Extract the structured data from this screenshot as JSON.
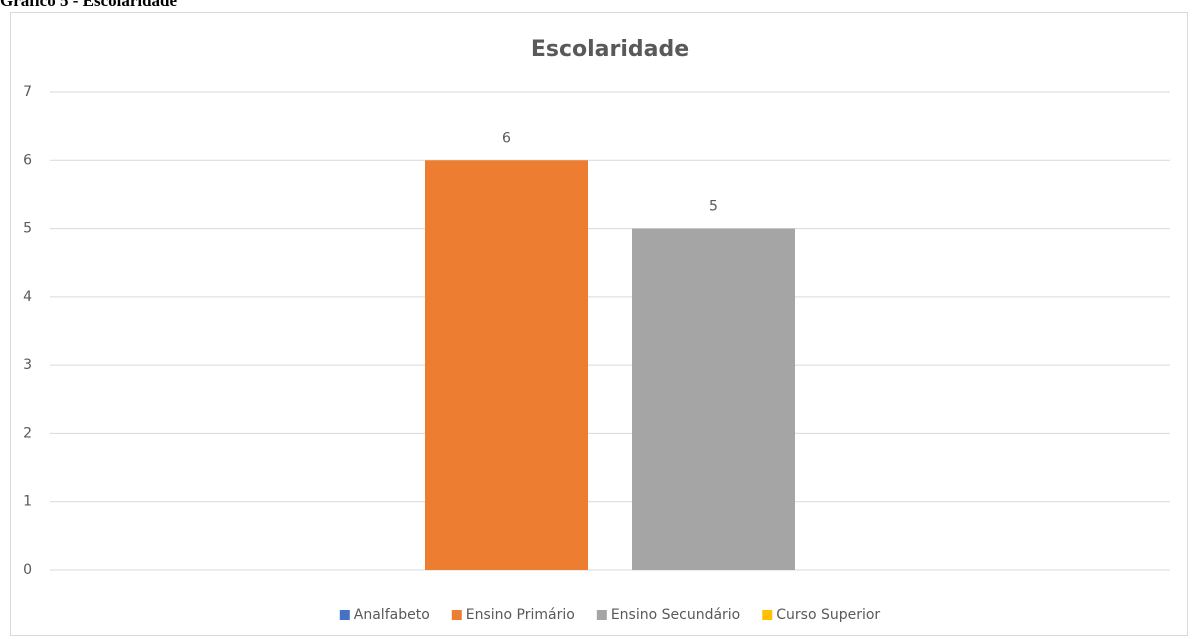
{
  "caption": "Gráfico 5 - Escolaridade",
  "chart_data": {
    "type": "bar",
    "title": "Escolaridade",
    "categories": [
      null
    ],
    "series": [
      {
        "name": "Analfabeto",
        "color": "#4472c4",
        "values": [
          null
        ]
      },
      {
        "name": "Ensino Primário",
        "color": "#ed7d31",
        "values": [
          6
        ]
      },
      {
        "name": "Ensino Secundário",
        "color": "#a5a5a5",
        "values": [
          5
        ]
      },
      {
        "name": "Curso Superior",
        "color": "#ffc000",
        "values": [
          null
        ]
      }
    ],
    "ylim": [
      0,
      7
    ],
    "yticks": [
      0,
      1,
      2,
      3,
      4,
      5,
      6,
      7
    ],
    "grid": true,
    "legend": "bottom"
  }
}
